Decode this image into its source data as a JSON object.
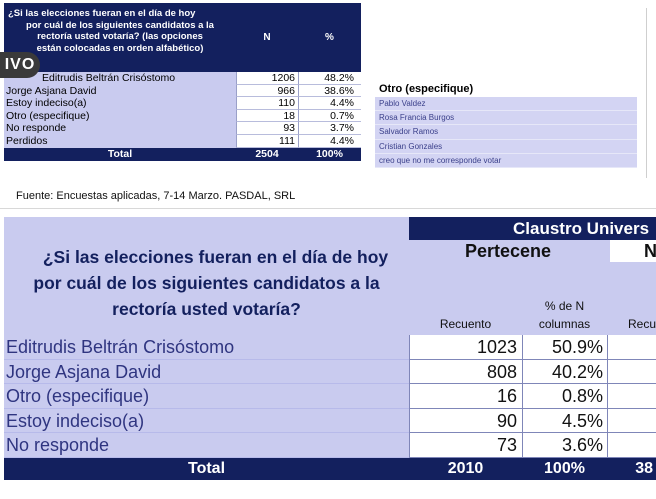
{
  "top_table": {
    "question_line1": "¿Si las elecciones fueran en el día de hoy",
    "question_line2": "por cuál de los siguientes candidatos a la",
    "question_line3": "rectoría usted votaría? (las opciones",
    "question_line4": "están colocadas en orden alfabético)",
    "col_n": "N",
    "col_pct": "%",
    "rows": [
      {
        "label": "Editrudis Beltrán Crisóstomo",
        "n": "1206",
        "pct": "48.2%"
      },
      {
        "label": "Jorge Asjana David",
        "n": "966",
        "pct": "38.6%"
      },
      {
        "label": "Estoy indeciso(a)",
        "n": "110",
        "pct": "4.4%"
      },
      {
        "label": "Otro (especifique)",
        "n": "18",
        "pct": "0.7%"
      },
      {
        "label": "No responde",
        "n": "93",
        "pct": "3.7%"
      },
      {
        "label": "Perdidos",
        "n": "111",
        "pct": "4.4%"
      }
    ],
    "total_label": "Total",
    "total_n": "2504",
    "total_pct": "100%"
  },
  "badge": {
    "text": "IVO"
  },
  "other_panel": {
    "title": "Otro (especifique)",
    "items": [
      "Pablo Valdez",
      "Rosa Francia Burgos",
      "Salvador Ramos",
      "Cristian Gonzales",
      "creo que no me corresponde votar"
    ]
  },
  "source": {
    "text": "Fuente: Encuestas aplicadas, 7-14 Marzo. PASDAL, SRL"
  },
  "bottom_table": {
    "group_header": "Claustro Univers",
    "question_line1": "¿Si las elecciones fueran en el día de hoy",
    "question_line2": "por cuál de los siguientes candidatos a la",
    "question_line3": "rectoría usted votaría?",
    "pertenece": "Pertecene",
    "no_pertenece": "No",
    "col_recuento": "Recuento",
    "col_pct_line1": "% de N",
    "col_pct_line2": "columnas",
    "col_recuento2": "Recu",
    "rows": [
      {
        "label": "Editrudis Beltrán Crisóstomo",
        "n": "1023",
        "pct": "50.9%"
      },
      {
        "label": "Jorge Asjana David",
        "n": "808",
        "pct": "40.2%"
      },
      {
        "label": "Otro (especifique)",
        "n": "16",
        "pct": "0.8%"
      },
      {
        "label": "Estoy indeciso(a)",
        "n": "90",
        "pct": "4.5%"
      },
      {
        "label": "No responde",
        "n": "73",
        "pct": "3.6%"
      }
    ],
    "total_label": "Total",
    "total_n": "2010",
    "total_pct": "100%",
    "total_other": "38"
  },
  "colors": {
    "navy": "#13205e",
    "lavender": "#c9cbef",
    "label_text": "#2f3580"
  }
}
